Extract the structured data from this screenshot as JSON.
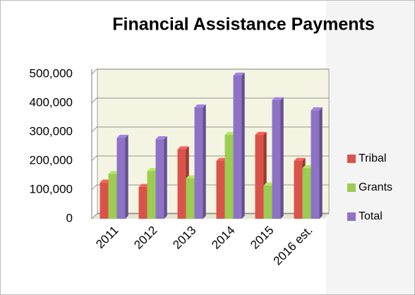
{
  "chart_data": {
    "type": "bar",
    "title": "Financial Assistance Payments",
    "categories": [
      "2011",
      "2012",
      "2013",
      "2014",
      "2015",
      "2016 est."
    ],
    "series": [
      {
        "name": "Tribal",
        "color": "#d9534a",
        "values": [
          125000,
          110000,
          240000,
          200000,
          290000,
          200000
        ]
      },
      {
        "name": "Grants",
        "color": "#9ccc52",
        "values": [
          155000,
          165000,
          140000,
          290000,
          115000,
          175000
        ]
      },
      {
        "name": "Total",
        "color": "#8d72c6",
        "values": [
          280000,
          275000,
          385000,
          495000,
          410000,
          375000
        ]
      }
    ],
    "ylim": [
      0,
      500000
    ],
    "yticks": [
      0,
      {
        "value": 100000,
        "label": "100,000"
      },
      {
        "value": 200000,
        "label": "200,000"
      },
      {
        "value": 300000,
        "label": "300,000"
      },
      {
        "value": 400000,
        "label": "400,000"
      },
      {
        "value": 500000,
        "label": "500,000"
      }
    ],
    "grid": true,
    "legend": "right"
  }
}
